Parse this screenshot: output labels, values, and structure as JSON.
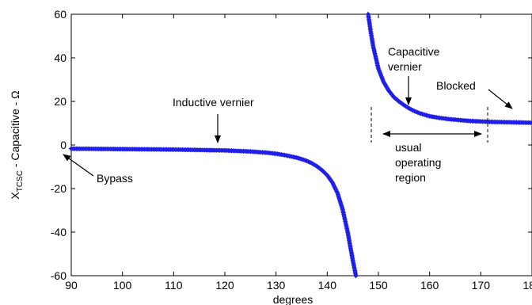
{
  "chart_data": {
    "type": "scatter",
    "title": "",
    "xlabel": "degrees",
    "ylabel": {
      "main": "X",
      "sub": "TCSC",
      "rest": " - Capacitive - Ω"
    },
    "xlim": [
      90,
      180
    ],
    "ylim": [
      -60,
      60
    ],
    "xticks": [
      90,
      100,
      110,
      120,
      130,
      140,
      150,
      160,
      170,
      180
    ],
    "yticks": [
      -60,
      -40,
      -20,
      0,
      20,
      40,
      60
    ],
    "grid": false,
    "marker_color": "#1f1fe6",
    "series": [
      {
        "points": [
          [
            90,
            -1.7
          ],
          [
            95,
            -1.8
          ],
          [
            100,
            -1.9
          ],
          [
            105,
            -2.0
          ],
          [
            110,
            -2.1
          ],
          [
            115,
            -2.3
          ],
          [
            120,
            -2.5
          ],
          [
            122,
            -2.7
          ],
          [
            125,
            -3.0
          ],
          [
            128,
            -3.5
          ],
          [
            130,
            -4.0
          ],
          [
            132,
            -4.8
          ],
          [
            134,
            -5.8
          ],
          [
            135,
            -6.5
          ],
          [
            136,
            -7.3
          ],
          [
            137,
            -8.4
          ],
          [
            138,
            -9.8
          ],
          [
            139,
            -11.6
          ],
          [
            140,
            -13.9
          ],
          [
            141,
            -17.2
          ],
          [
            142,
            -22.0
          ],
          [
            143,
            -29.5
          ],
          [
            144,
            -40.0
          ],
          [
            145,
            -53.0
          ],
          [
            145.6,
            -60
          ],
          [
            148,
            60
          ],
          [
            148.5,
            52
          ],
          [
            149,
            45
          ],
          [
            150,
            35
          ],
          [
            151,
            29
          ],
          [
            152,
            25
          ],
          [
            153,
            22
          ],
          [
            154,
            20
          ],
          [
            155,
            18.3
          ],
          [
            156,
            16.8
          ],
          [
            157,
            15.6
          ],
          [
            158,
            14.6
          ],
          [
            159,
            13.9
          ],
          [
            160,
            13.2
          ],
          [
            162,
            12.4
          ],
          [
            164,
            11.8
          ],
          [
            166,
            11.4
          ],
          [
            168,
            11.0
          ],
          [
            170,
            10.8
          ],
          [
            172,
            10.6
          ],
          [
            174,
            10.5
          ],
          [
            176,
            10.4
          ],
          [
            178,
            10.3
          ],
          [
            180,
            10.2
          ]
        ]
      }
    ],
    "annotations": [
      {
        "text": "Inductive vernier"
      },
      {
        "text": "Bypass"
      },
      {
        "text": "Capacitive"
      },
      {
        "text": "vernier"
      },
      {
        "text": "Blocked"
      },
      {
        "text": "usual"
      },
      {
        "text": "operating"
      },
      {
        "text": "region"
      }
    ]
  }
}
